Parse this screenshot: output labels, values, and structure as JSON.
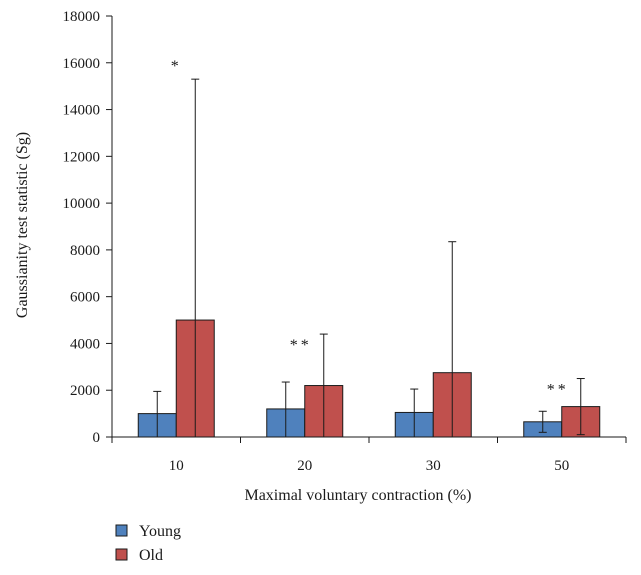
{
  "chart_data": {
    "type": "bar",
    "title": "",
    "xlabel": "Maximal voluntary contraction (%)",
    "ylabel": "Gaussianity test statistic (Sg)",
    "ylim": [
      0,
      18000
    ],
    "yticks": [
      0,
      2000,
      4000,
      6000,
      8000,
      10000,
      12000,
      14000,
      16000,
      18000
    ],
    "categories": [
      "10",
      "20",
      "30",
      "50"
    ],
    "series": [
      {
        "name": "Young",
        "color": "#4f81bd",
        "values": [
          1000,
          1200,
          1050,
          650
        ],
        "error_upper": [
          1950,
          2350,
          2050,
          1100
        ],
        "error_lower": [
          0,
          0,
          0,
          200
        ]
      },
      {
        "name": "Old",
        "color": "#c0504d",
        "values": [
          5000,
          2200,
          2750,
          1300
        ],
        "error_upper": [
          15300,
          4400,
          8350,
          2500
        ],
        "error_lower": [
          0,
          0,
          0,
          100
        ]
      }
    ],
    "significance": [
      {
        "category": "10",
        "series": "Old",
        "label": "*"
      },
      {
        "category": "20",
        "series": "Old",
        "label": "**"
      },
      {
        "category": "50",
        "series": "Old",
        "label": "**"
      }
    ],
    "grid": false,
    "legend": "bottom-left"
  }
}
